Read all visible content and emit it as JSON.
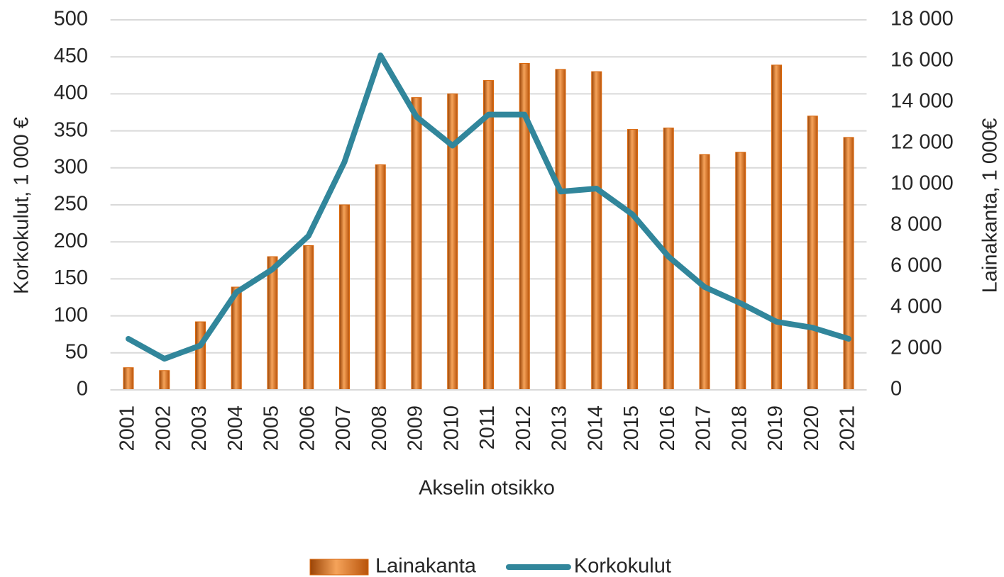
{
  "chart_data": {
    "type": "bar-line",
    "categories": [
      "2001",
      "2002",
      "2003",
      "2004",
      "2005",
      "2006",
      "2007",
      "2008",
      "2009",
      "2010",
      "2011",
      "2012",
      "2013",
      "2014",
      "2015",
      "2016",
      "2017",
      "2018",
      "2019",
      "2020",
      "2021"
    ],
    "series": [
      {
        "name": "Lainakanta",
        "type": "bar",
        "axis": "y2",
        "color": "#d9660b",
        "values": [
          1080,
          940,
          3310,
          5000,
          6480,
          7020,
          9000,
          10950,
          14220,
          14400,
          15050,
          15880,
          15590,
          15480,
          12670,
          12740,
          11450,
          11560,
          15800,
          13320,
          12280
        ]
      },
      {
        "name": "Korkokulut",
        "type": "line",
        "axis": "y",
        "color": "#31869b",
        "values": [
          69,
          42,
          60,
          132,
          163,
          208,
          308,
          452,
          369,
          330,
          372,
          372,
          268,
          272,
          237,
          180,
          139,
          117,
          92,
          84,
          69
        ]
      }
    ],
    "x_label": "Akselin otsikko",
    "y_label": "Korkokulut, 1 000 €",
    "y2_label": "Lainakanta, 1 000€",
    "ylim": [
      0,
      500
    ],
    "yticks": [
      0,
      50,
      100,
      150,
      200,
      250,
      300,
      350,
      400,
      450,
      500
    ],
    "y2lim": [
      0,
      18000
    ],
    "y2ticks": [
      0,
      {
        "value": 2000,
        "label": "2 000"
      },
      {
        "value": 4000,
        "label": "4 000"
      },
      {
        "value": 6000,
        "label": "6 000"
      },
      {
        "value": 8000,
        "label": "8 000"
      },
      {
        "value": 10000,
        "label": "10 000"
      },
      {
        "value": 12000,
        "label": "12 000"
      },
      {
        "value": 14000,
        "label": "14 000"
      },
      {
        "value": 16000,
        "label": "16 000"
      },
      {
        "value": 18000,
        "label": "18 000"
      }
    ],
    "grid": true,
    "legend": "bottom"
  }
}
